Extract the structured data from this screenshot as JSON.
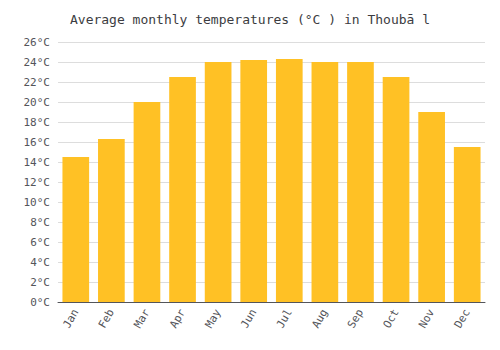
{
  "chart_data": {
    "type": "bar",
    "title": "Average monthly temperatures (°C ) in Thoubā l",
    "categories": [
      "Jan",
      "Feb",
      "Mar",
      "Apr",
      "May",
      "Jun",
      "Jul",
      "Aug",
      "Sep",
      "Oct",
      "Nov",
      "Dec"
    ],
    "values": [
      14.5,
      16.3,
      20.0,
      22.5,
      24.0,
      24.2,
      24.3,
      24.0,
      24.0,
      22.5,
      19.0,
      15.5
    ],
    "color": "#FFC125",
    "ylim": [
      0,
      26
    ],
    "yticks": [
      {
        "value": 0,
        "label": "0°C"
      },
      {
        "value": 2,
        "label": "2°C"
      },
      {
        "value": 4,
        "label": "4°C"
      },
      {
        "value": 6,
        "label": "6°C"
      },
      {
        "value": 8,
        "label": "8°C"
      },
      {
        "value": 10,
        "label": "10°C"
      },
      {
        "value": 12,
        "label": "12°C"
      },
      {
        "value": 14,
        "label": "14°C"
      },
      {
        "value": 16,
        "label": "16°C"
      },
      {
        "value": 18,
        "label": "18°C"
      },
      {
        "value": 20,
        "label": "20°C"
      },
      {
        "value": 22,
        "label": "22°C"
      },
      {
        "value": 24,
        "label": "24°C"
      },
      {
        "value": 26,
        "label": "26°C"
      }
    ],
    "grid": true
  }
}
